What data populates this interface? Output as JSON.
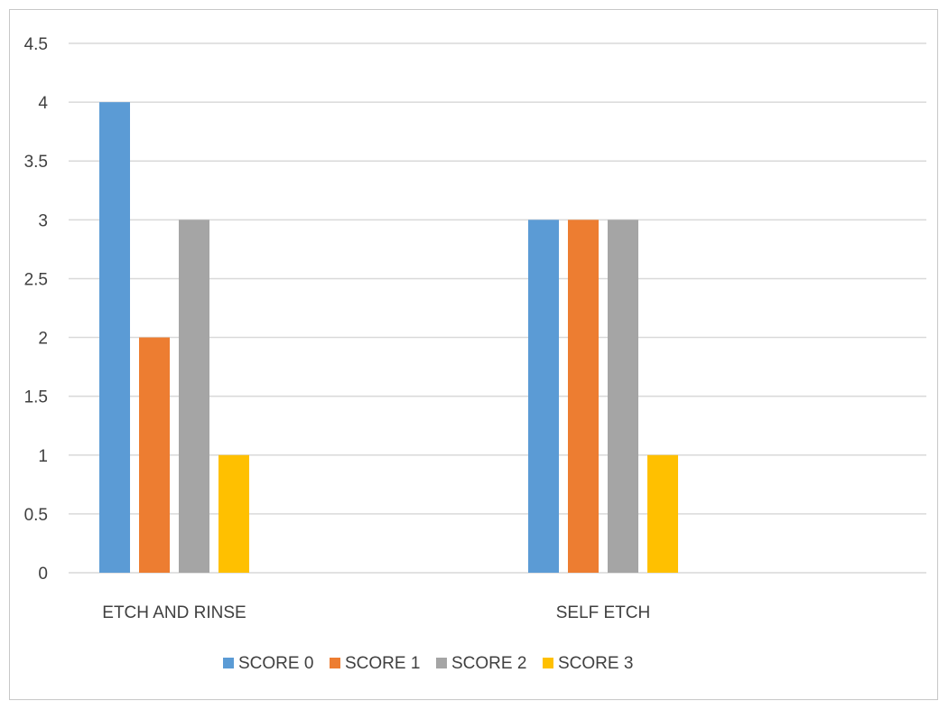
{
  "chart_data": {
    "type": "bar",
    "categories": [
      "ETCH AND RINSE",
      "SELF ETCH"
    ],
    "series": [
      {
        "name": "SCORE 0",
        "values": [
          4,
          3
        ],
        "color": "#5b9bd5"
      },
      {
        "name": "SCORE 1",
        "values": [
          2,
          3
        ],
        "color": "#ed7d31"
      },
      {
        "name": "SCORE 2",
        "values": [
          3,
          3
        ],
        "color": "#a5a5a5"
      },
      {
        "name": "SCORE 3",
        "values": [
          1,
          1
        ],
        "color": "#ffc000"
      }
    ],
    "ylim": [
      0,
      4.5
    ],
    "yticks": [
      "0",
      "0.5",
      "1",
      "1.5",
      "2",
      "2.5",
      "3",
      "3.5",
      "4",
      "4.5"
    ],
    "grid": true,
    "legend_position": "bottom",
    "title": "",
    "xlabel": "",
    "ylabel": ""
  }
}
